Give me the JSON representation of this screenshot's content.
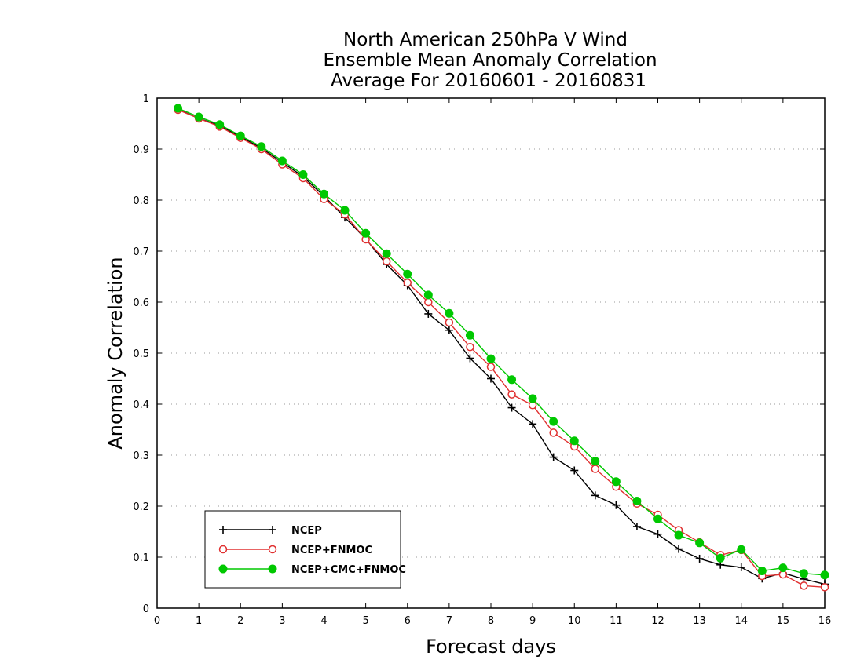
{
  "chart_data": {
    "type": "line",
    "title": [
      "North American 250hPa V Wind",
      "Ensemble Mean Anomaly Correlation",
      "Average For 20160601 - 20160831"
    ],
    "xlabel": "Forecast days",
    "ylabel": "Anomaly Correlation",
    "xlim": [
      0,
      16
    ],
    "ylim": [
      0,
      1
    ],
    "x_ticks": [
      "0",
      "1",
      "2",
      "3",
      "4",
      "5",
      "6",
      "7",
      "8",
      "9",
      "10",
      "11",
      "12",
      "13",
      "14",
      "15",
      "16"
    ],
    "y_ticks": [
      "0",
      "0.1",
      "0.2",
      "0.3",
      "0.4",
      "0.5",
      "0.6",
      "0.7",
      "0.8",
      "0.9",
      "1"
    ],
    "grid": "horizontal dotted",
    "legend_position": "bottom-left",
    "x": [
      0.5,
      1,
      1.5,
      2,
      2.5,
      3,
      3.5,
      4,
      4.5,
      5,
      5.5,
      6,
      6.5,
      7,
      7.5,
      8,
      8.5,
      9,
      9.5,
      10,
      10.5,
      11,
      11.5,
      12,
      12.5,
      13,
      13.5,
      14,
      14.5,
      15,
      15.5,
      16
    ],
    "series": [
      {
        "name": "NCEP",
        "color": "#000000",
        "marker": "plus",
        "values": [
          0.978,
          0.96,
          0.946,
          0.924,
          0.902,
          0.874,
          0.846,
          0.808,
          0.766,
          0.724,
          0.674,
          0.633,
          0.577,
          0.545,
          0.49,
          0.45,
          0.393,
          0.361,
          0.296,
          0.27,
          0.221,
          0.202,
          0.16,
          0.145,
          0.116,
          0.097,
          0.085,
          0.08,
          0.058,
          0.069,
          0.057,
          0.047
        ]
      },
      {
        "name": "NCEP+FNMOC",
        "color": "#e03030",
        "marker": "open-circle",
        "values": [
          0.977,
          0.96,
          0.944,
          0.922,
          0.9,
          0.87,
          0.843,
          0.802,
          0.772,
          0.723,
          0.68,
          0.638,
          0.6,
          0.56,
          0.512,
          0.473,
          0.419,
          0.398,
          0.344,
          0.317,
          0.273,
          0.238,
          0.205,
          0.183,
          0.153,
          0.129,
          0.104,
          0.114,
          0.063,
          0.066,
          0.044,
          0.041
        ]
      },
      {
        "name": "NCEP+CMC+FNMOC",
        "color": "#00c800",
        "marker": "filled-circle",
        "values": [
          0.98,
          0.963,
          0.948,
          0.926,
          0.905,
          0.877,
          0.85,
          0.812,
          0.78,
          0.735,
          0.695,
          0.655,
          0.614,
          0.578,
          0.535,
          0.489,
          0.448,
          0.411,
          0.366,
          0.328,
          0.288,
          0.248,
          0.21,
          0.175,
          0.143,
          0.128,
          0.098,
          0.115,
          0.073,
          0.079,
          0.068,
          0.065
        ]
      }
    ]
  }
}
